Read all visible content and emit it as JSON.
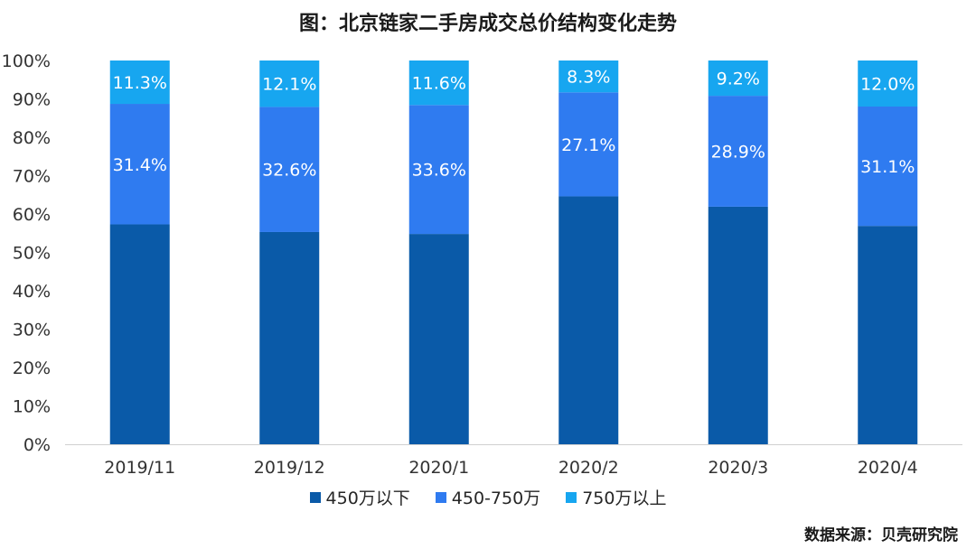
{
  "title": "图：北京链家二手房成交总价结构变化走势",
  "source": "数据来源：贝壳研究院",
  "chart_data": {
    "type": "bar",
    "stacked": true,
    "categories": [
      "2019/11",
      "2019/12",
      "2020/1",
      "2020/2",
      "2020/3",
      "2020/4"
    ],
    "series": [
      {
        "name": "450万以下",
        "color": "#0a5aa8",
        "values": [
          57.3,
          55.3,
          54.8,
          64.6,
          61.9,
          56.9
        ]
      },
      {
        "name": "450-750万",
        "color": "#2f7bf0",
        "values": [
          31.4,
          32.6,
          33.6,
          27.1,
          28.9,
          31.1
        ],
        "labels": [
          "31.4%",
          "32.6%",
          "33.6%",
          "27.1%",
          "28.9%",
          "31.1%"
        ]
      },
      {
        "name": "750万以上",
        "color": "#17a6f0",
        "values": [
          11.3,
          12.1,
          11.6,
          8.3,
          9.2,
          12.0
        ],
        "labels": [
          "11.3%",
          "12.1%",
          "11.6%",
          "8.3%",
          "9.2%",
          "12.0%"
        ]
      }
    ],
    "yticks": [
      "0%",
      "10%",
      "20%",
      "30%",
      "40%",
      "50%",
      "60%",
      "70%",
      "80%",
      "90%",
      "100%"
    ],
    "ylim": [
      0,
      100
    ],
    "xlabel": "",
    "ylabel": "",
    "grid": false,
    "legend": "bottom"
  }
}
